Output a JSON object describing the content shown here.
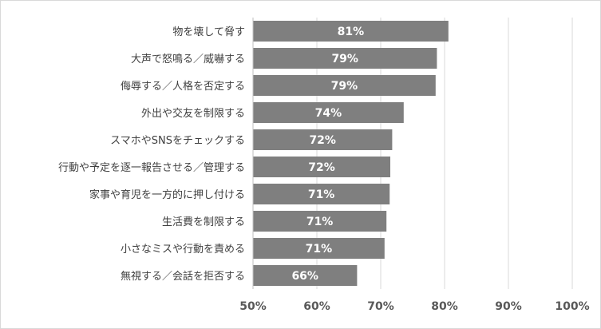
{
  "chart_data": {
    "type": "bar",
    "orientation": "horizontal",
    "categories": [
      "物を壊して脅す",
      "大声で怒鳴る／威嚇する",
      "侮辱する／人格を否定する",
      "外出や交友を制限する",
      "スマホやSNSをチェックする",
      "行動や予定を逐一報告させる／管理する",
      "家事や育児を一方的に押し付ける",
      "生活費を制限する",
      "小さなミスや行動を責める",
      "無視する／会話を拒否する"
    ],
    "values": [
      80.6,
      78.8,
      78.6,
      73.6,
      71.8,
      71.5,
      71.4,
      70.9,
      70.6,
      66.3
    ],
    "data_labels": [
      "81%",
      "79%",
      "79%",
      "74%",
      "72%",
      "72%",
      "71%",
      "71%",
      "71%",
      "66%"
    ],
    "xlim": [
      50,
      100
    ],
    "xticks": [
      50,
      60,
      70,
      80,
      90,
      100
    ],
    "xtick_labels": [
      "50%",
      "60%",
      "70%",
      "80%",
      "90%",
      "100%"
    ],
    "title": "",
    "xlabel": "",
    "ylabel": "",
    "grid": "vertical",
    "legend": "none",
    "colors": {
      "bar": "#7f7f7f",
      "grid": "#d9d9d9",
      "axis": "#bfbfbf",
      "data_label": "#ffffff",
      "category_text": "#404040",
      "tick_text": "#595959"
    }
  }
}
